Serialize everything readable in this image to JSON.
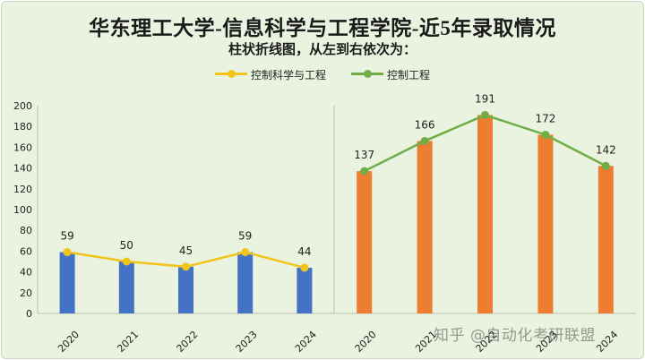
{
  "chart_data": {
    "type": "bar",
    "title": "华东理工大学-信息科学与工程学院-近5年录取情况",
    "subtitle": "柱状折线图，从左到右依次为：",
    "ylim": [
      0,
      200
    ],
    "yticks": [
      0,
      20,
      40,
      60,
      80,
      100,
      120,
      140,
      160,
      180,
      200
    ],
    "grid": false,
    "legend_position": "top",
    "groups": [
      {
        "name": "控制科学与工程",
        "categories": [
          "2020",
          "2021",
          "2022",
          "2023",
          "2024"
        ],
        "values": [
          59,
          50,
          45,
          59,
          44
        ],
        "bar_color": "#4472c4",
        "line_color": "#f0c419"
      },
      {
        "name": "控制工程",
        "categories": [
          "2020",
          "2021",
          "2022",
          "2023",
          "2024"
        ],
        "values": [
          137,
          166,
          191,
          172,
          142
        ],
        "bar_color": "#ed7d31",
        "line_color": "#70ad47"
      }
    ]
  },
  "legend": {
    "items": [
      {
        "label": "控制科学与工程",
        "color": "#f0c419"
      },
      {
        "label": "控制工程",
        "color": "#70ad47"
      }
    ]
  },
  "watermark": "知乎 @自动化考研联盟"
}
